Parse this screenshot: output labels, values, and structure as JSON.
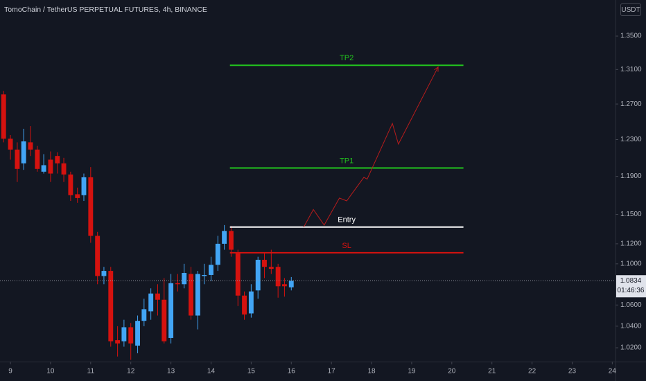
{
  "chart_data": {
    "type": "candlestick",
    "title": "TomoChain / TetherUS PERPETUAL FUTURES, 4h, BINANCE",
    "currency": "USDT",
    "log_scale": true,
    "up_color": "#42a5f5",
    "down_color": "#d5120f",
    "x": [
      8.83,
      9,
      9.17,
      9.33,
      9.5,
      9.67,
      9.83,
      10,
      10.17,
      10.33,
      10.5,
      10.67,
      10.83,
      11,
      11.17,
      11.33,
      11.5,
      11.67,
      11.83,
      12,
      12.17,
      12.33,
      12.5,
      12.67,
      12.83,
      13,
      13.17,
      13.33,
      13.5,
      13.67,
      13.83,
      14,
      14.17,
      14.33,
      14.5,
      14.67,
      14.83,
      15,
      15.17,
      15.33,
      15.5,
      15.67,
      15.83,
      16
    ],
    "open": [
      1.281,
      1.231,
      1.219,
      1.204,
      1.227,
      1.219,
      1.195,
      1.208,
      1.212,
      1.204,
      1.192,
      1.171,
      1.17,
      1.189,
      1.128,
      1.088,
      1.093,
      1.027,
      1.026,
      1.039,
      1.022,
      1.045,
      1.054,
      1.071,
      1.065,
      1.029,
      1.081,
      1.08,
      1.09,
      1.05,
      1.088,
      1.089,
      1.099,
      1.12,
      1.133,
      1.111,
      1.069,
      1.052,
      1.074,
      1.104,
      1.097,
      1.097,
      1.08,
      1.077
    ],
    "high": [
      1.285,
      1.235,
      1.227,
      1.242,
      1.245,
      1.223,
      1.214,
      1.217,
      1.216,
      1.21,
      1.195,
      1.178,
      1.193,
      1.2,
      1.132,
      1.097,
      1.097,
      1.04,
      1.046,
      1.043,
      1.05,
      1.066,
      1.076,
      1.08,
      1.086,
      1.09,
      1.09,
      1.1,
      1.097,
      1.093,
      1.1,
      1.107,
      1.128,
      1.139,
      1.138,
      1.114,
      1.073,
      1.08,
      1.107,
      1.111,
      1.114,
      1.1,
      1.086,
      1.087
    ],
    "low": [
      1.227,
      1.208,
      1.184,
      1.197,
      1.212,
      1.195,
      1.193,
      1.184,
      1.193,
      1.184,
      1.164,
      1.162,
      1.164,
      1.121,
      1.08,
      1.08,
      1.021,
      1.012,
      1.021,
      1.009,
      1.015,
      1.04,
      1.046,
      1.05,
      1.024,
      1.024,
      1.073,
      1.076,
      1.046,
      1.037,
      1.08,
      1.083,
      1.093,
      1.114,
      1.107,
      1.059,
      1.046,
      1.048,
      1.066,
      1.086,
      1.09,
      1.067,
      1.068,
      1.074
    ],
    "close": [
      1.231,
      1.219,
      1.198,
      1.228,
      1.219,
      1.198,
      1.202,
      1.193,
      1.204,
      1.192,
      1.17,
      1.167,
      1.189,
      1.128,
      1.088,
      1.093,
      1.026,
      1.024,
      1.039,
      1.024,
      1.045,
      1.056,
      1.071,
      1.065,
      1.026,
      1.081,
      1.08,
      1.091,
      1.05,
      1.09,
      1.089,
      1.099,
      1.12,
      1.133,
      1.114,
      1.069,
      1.051,
      1.073,
      1.104,
      1.097,
      1.095,
      1.078,
      1.078,
      1.0834
    ],
    "xlim": [
      8.74,
      24.08
    ],
    "xticks": [
      9,
      10,
      11,
      12,
      13,
      14,
      15,
      16,
      17,
      18,
      19,
      20,
      21,
      22,
      23,
      24
    ],
    "ylim": [
      1.0074,
      1.3945
    ],
    "yticks": [
      {
        "value": 1.35,
        "label": "1.3500"
      },
      {
        "value": 1.31,
        "label": "1.3100"
      },
      {
        "value": 1.27,
        "label": "1.2700"
      },
      {
        "value": 1.23,
        "label": "1.2300"
      },
      {
        "value": 1.19,
        "label": "1.1900"
      },
      {
        "value": 1.15,
        "label": "1.1500"
      },
      {
        "value": 1.12,
        "label": "1.1200"
      },
      {
        "value": 1.1,
        "label": "1.1000"
      },
      {
        "value": 1.06,
        "label": "1.0600"
      },
      {
        "value": 1.04,
        "label": "1.0400"
      },
      {
        "value": 1.02,
        "label": "1.0200"
      }
    ],
    "levels": [
      {
        "label": "TP2",
        "value": 1.315,
        "x": [
          14.47,
          20.29
        ],
        "color": "#22c51e"
      },
      {
        "label": "TP1",
        "value": 1.199,
        "x": [
          14.47,
          20.29
        ],
        "color": "#22c51e"
      },
      {
        "label": "Entry",
        "value": 1.137,
        "x": [
          14.47,
          20.29
        ],
        "color": "#ffffff"
      },
      {
        "label": "SL",
        "value": 1.111,
        "x": [
          14.47,
          20.29
        ],
        "color": "#d5120f"
      }
    ],
    "projection": {
      "x": [
        16.31,
        16.55,
        16.82,
        17.2,
        17.38,
        17.81,
        17.89,
        18.52,
        18.67,
        19.66
      ],
      "y": [
        1.137,
        1.155,
        1.139,
        1.167,
        1.164,
        1.189,
        1.187,
        1.248,
        1.225,
        1.313
      ],
      "color": "#b71c1c"
    },
    "last_price": 1.0834,
    "countdown": "01:46:36"
  }
}
